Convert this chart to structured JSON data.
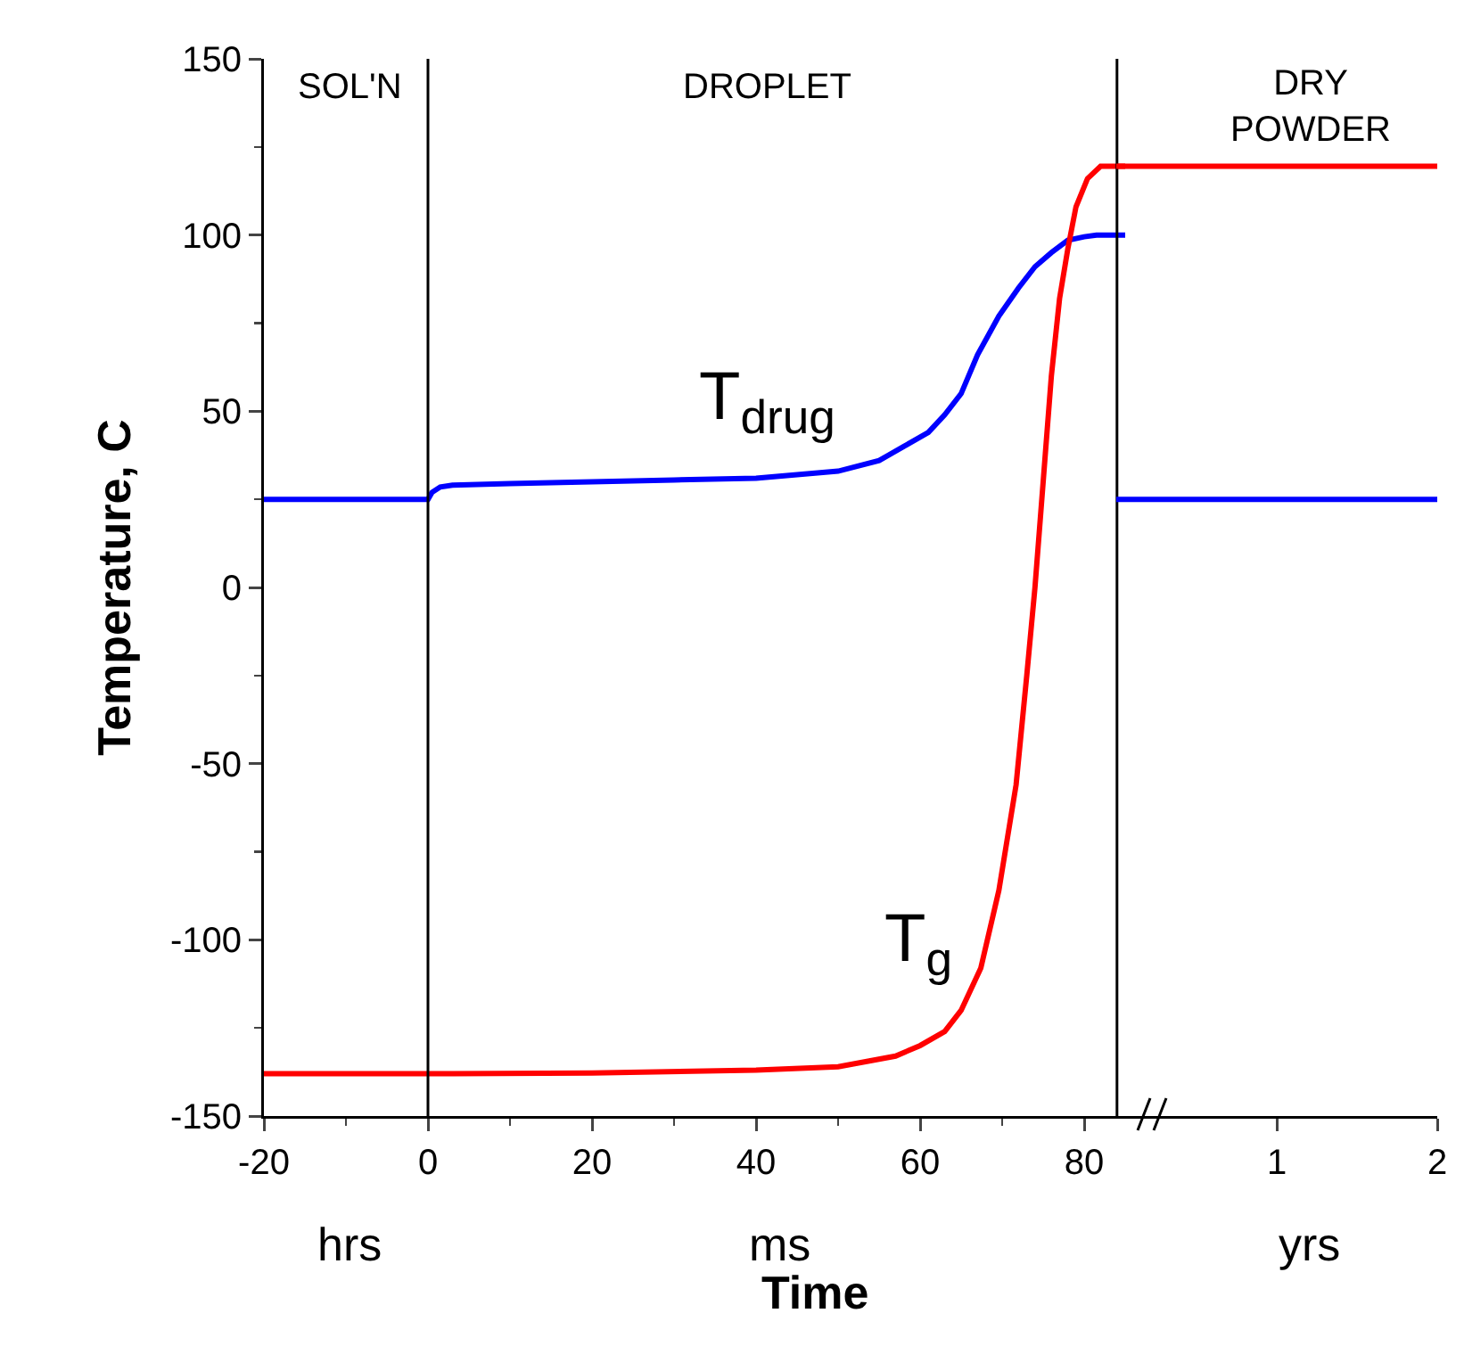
{
  "chart_data": [
    {
      "type": "line",
      "xlabel": "Time",
      "ylabel": "Temperature, C",
      "xlim": [
        -20,
        85
      ],
      "xticks": [
        -20,
        0,
        20,
        40,
        60,
        80
      ],
      "ylim": [
        -150,
        150
      ],
      "yticks": [
        -150,
        -100,
        -50,
        0,
        50,
        100,
        150
      ],
      "grid": false,
      "legend": false,
      "tick_labels": "xy",
      "ref_lines": [
        {
          "axis": "x",
          "value": 0,
          "color": "#000000"
        },
        {
          "axis": "x",
          "value": 84,
          "color": "#000000"
        }
      ],
      "annotations": [
        "SOL'N",
        "DROPLET",
        "hrs",
        "ms"
      ],
      "series": [
        {
          "name": "T$_{drug}$",
          "color": "#0000ff",
          "x": [
            -20,
            -10,
            0,
            0.5,
            1.5,
            3,
            10,
            20,
            30,
            40,
            50,
            55,
            58,
            61,
            63,
            65,
            67,
            69.6,
            72,
            74,
            76,
            78,
            80,
            81.5,
            83,
            85
          ],
          "values": [
            25,
            25,
            25,
            27,
            28.5,
            29,
            29.5,
            30,
            30.5,
            31,
            33,
            36,
            40,
            44,
            49,
            55,
            66,
            77,
            85,
            91,
            95,
            98.5,
            99.5,
            100,
            100,
            100
          ]
        },
        {
          "name": "T$_{g}$",
          "color": "#ff0000",
          "x": [
            -20,
            0,
            20,
            40,
            50,
            57,
            60,
            63,
            65,
            67.4,
            69.6,
            71.7,
            73,
            74,
            75,
            76,
            77,
            78,
            79,
            80.4,
            82,
            85
          ],
          "values": [
            -138,
            -138,
            -137.8,
            -137,
            -136,
            -133,
            -130,
            -126,
            -120,
            -108,
            -86,
            -56,
            -25,
            0,
            30,
            60,
            82,
            96,
            108,
            116,
            119.5,
            119.5
          ]
        }
      ]
    },
    {
      "type": "line",
      "xlim": [
        0,
        2
      ],
      "xticks": [
        1,
        2
      ],
      "ylim": [
        -150,
        150
      ],
      "tick_labels": "x",
      "grid": false,
      "legend": false,
      "annotations": [
        "DRY\nPOWDER",
        "yrs"
      ],
      "series": [
        {
          "color": "#ff0000",
          "x": [
            0,
            1,
            2
          ],
          "values": [
            119.5,
            119.5,
            119.5
          ]
        },
        {
          "color": "#0000ff",
          "x": [
            0,
            1,
            2
          ],
          "values": [
            25,
            25,
            25
          ]
        }
      ]
    }
  ]
}
